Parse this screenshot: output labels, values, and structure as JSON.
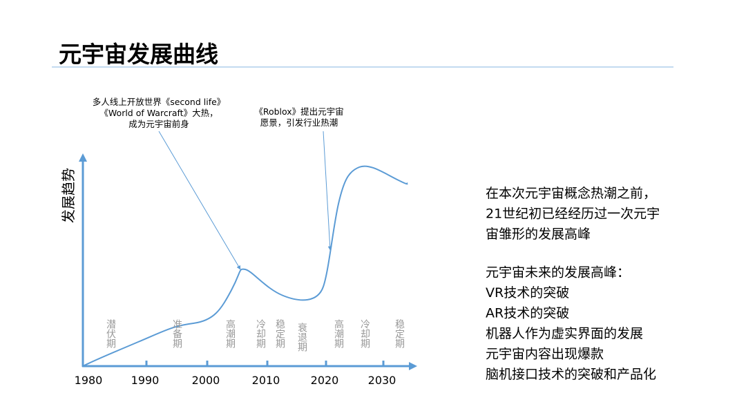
{
  "header": {
    "title": "元宇宙发展曲线"
  },
  "chart": {
    "axis_label": "发展趋势",
    "x_ticks": [
      "1980",
      "1990",
      "2000",
      "2010",
      "2020",
      "2030"
    ],
    "phases": [
      "潜伏期",
      "准备期",
      "高潮期",
      "冷却期",
      "稳定期",
      "衰退期",
      "高潮期",
      "冷却期",
      "稳定期"
    ],
    "annotations": [
      {
        "lines": [
          "多人线上开放世界《second life》",
          "《World of Warcraft》大热，",
          "成为元宇宙前身"
        ]
      },
      {
        "lines": [
          "《Roblox》提出元宇宙",
          "愿景，引发行业热潮"
        ]
      }
    ]
  },
  "notes": {
    "paragraphs": [
      [
        "在本次元宇宙概念热潮之前，",
        "21世纪初已经经历过一次元宇",
        "宙雏形的发展高峰"
      ],
      [
        "元宇宙未来的发展高峰：",
        "VR技术的突破",
        "AR技术的突破",
        "机器人作为虚实界面的发展",
        "元宇宙内容出现爆款",
        "脑机接口技术的突破和产品化"
      ]
    ]
  }
}
